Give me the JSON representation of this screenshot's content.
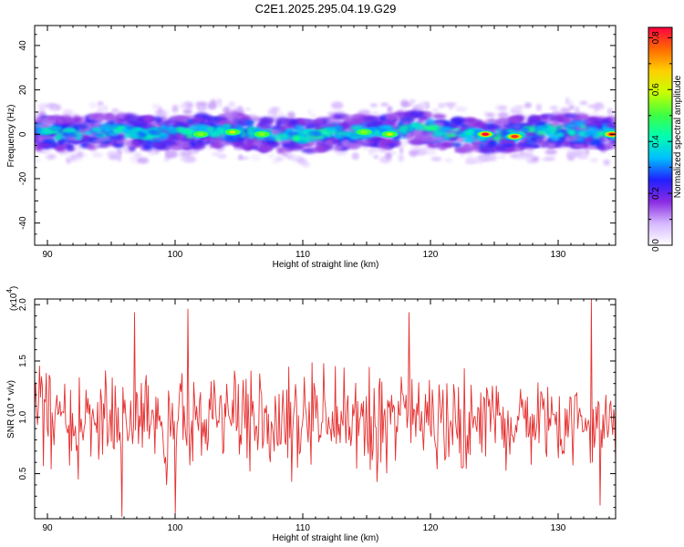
{
  "title": "C2E1.2025.295.04.19.G29",
  "colors": {
    "snr_line": "#e53030",
    "colormap": [
      "#ffffff",
      "#d6b8ff",
      "#8a2be2",
      "#2020ff",
      "#00bfff",
      "#00ffb0",
      "#40ff40",
      "#c8ff00",
      "#ffd000",
      "#ff6a00",
      "#ff0040"
    ]
  },
  "chart_data": [
    {
      "type": "heatmap",
      "name": "spectrogram",
      "title": "C2E1.2025.295.04.19.G29",
      "xlabel": "Height of straight line (km)",
      "ylabel": "Frequency (Hz)",
      "xlim": [
        89,
        134.5
      ],
      "ylim": [
        -50,
        49
      ],
      "xticks": [
        90,
        100,
        110,
        120,
        130
      ],
      "yticks": [
        -40,
        -20,
        0,
        20,
        40
      ],
      "band": {
        "center_hz": [
          [
            89,
            1
          ],
          [
            92,
            0
          ],
          [
            95,
            2
          ],
          [
            98,
            0
          ],
          [
            101,
            1
          ],
          [
            104,
            2
          ],
          [
            107,
            0
          ],
          [
            110,
            -1
          ],
          [
            113,
            1
          ],
          [
            116,
            1
          ],
          [
            119,
            3
          ],
          [
            122,
            0
          ],
          [
            125,
            -1
          ],
          [
            128,
            1
          ],
          [
            131,
            2
          ],
          [
            134,
            0
          ]
        ],
        "halfwidth_hz": 7,
        "outer_halfwidth_hz": 13
      },
      "peaks": [
        {
          "x": 102.0,
          "y": 0,
          "amp": 0.55
        },
        {
          "x": 104.5,
          "y": 1,
          "amp": 0.6
        },
        {
          "x": 106.8,
          "y": 0,
          "amp": 0.55
        },
        {
          "x": 114.8,
          "y": 1,
          "amp": 0.55
        },
        {
          "x": 116.8,
          "y": 0,
          "amp": 0.6
        },
        {
          "x": 124.3,
          "y": 0,
          "amp": 0.84
        },
        {
          "x": 126.6,
          "y": -1,
          "amp": 0.8
        },
        {
          "x": 134.2,
          "y": 0,
          "amp": 0.8
        }
      ],
      "colorbar": {
        "label": "Normalized spectral amplitude",
        "lim": [
          0.0,
          0.84
        ],
        "ticks": [
          "0.0",
          "0.2",
          "0.4",
          "0.6",
          "0.8"
        ]
      }
    },
    {
      "type": "line",
      "name": "snr",
      "xlabel": "Height of straight line (km)",
      "ylabel": "SNR (10 * v/v)",
      "scale_label": "(x10",
      "scale_exp": "4",
      "scale_close": ")",
      "xlim": [
        89,
        134.5
      ],
      "ylim": [
        0.1,
        2.05
      ],
      "xticks": [
        90,
        100,
        110,
        120,
        130
      ],
      "yticks": [
        "0.5",
        "1.0",
        "1.5",
        "2.0"
      ],
      "n_points": 600,
      "mean": 0.97,
      "spread": 0.42,
      "min": 0.1,
      "max": 2.05,
      "notable_points": [
        {
          "x": 96.8,
          "y": 1.93
        },
        {
          "x": 101.0,
          "y": 1.96
        },
        {
          "x": 118.3,
          "y": 1.93
        },
        {
          "x": 132.6,
          "y": 2.05
        },
        {
          "x": 95.8,
          "y": 0.12
        },
        {
          "x": 100.0,
          "y": 0.15
        },
        {
          "x": 133.3,
          "y": 0.22
        }
      ]
    }
  ]
}
